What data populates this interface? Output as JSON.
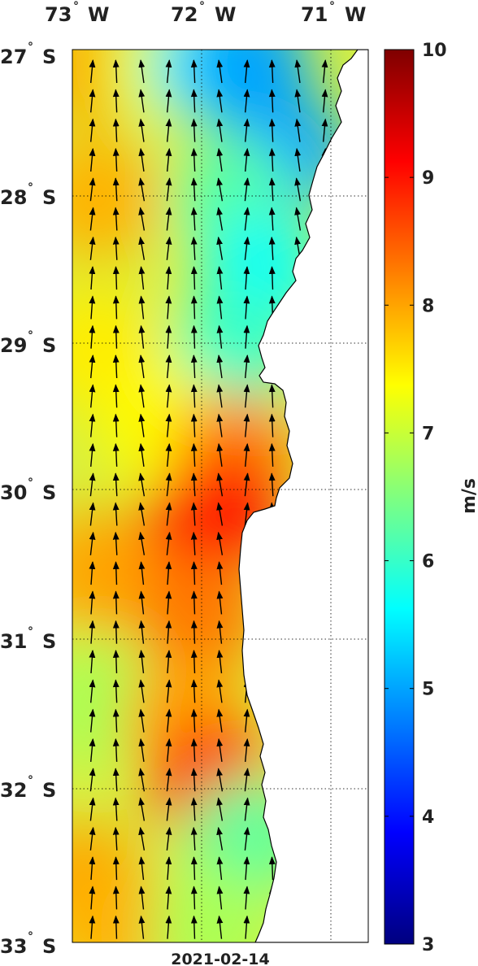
{
  "date_label": "2021-02-14",
  "colorbar": {
    "unit": "m/s",
    "min": 3,
    "max": 10,
    "ticks": [
      "3",
      "4",
      "5",
      "6",
      "7",
      "8",
      "9",
      "10"
    ]
  },
  "axes": {
    "lon_labels": [
      {
        "deg": "73",
        "dir": "W",
        "value": -73
      },
      {
        "deg": "72",
        "dir": "W",
        "value": -72
      },
      {
        "deg": "71",
        "dir": "W",
        "value": -71
      }
    ],
    "lat_labels": [
      {
        "deg": "27",
        "dir": "S",
        "value": -27
      },
      {
        "deg": "28",
        "dir": "S",
        "value": -28
      },
      {
        "deg": "29",
        "dir": "S",
        "value": -29
      },
      {
        "deg": "30",
        "dir": "S",
        "value": -30
      },
      {
        "deg": "31",
        "dir": "S",
        "value": -31
      },
      {
        "deg": "32",
        "dir": "S",
        "value": -32
      },
      {
        "deg": "33",
        "dir": "S",
        "value": -33
      }
    ],
    "lon_range": [
      -73.1,
      -70.75
    ],
    "lat_range": [
      -33,
      -27
    ],
    "grid": true
  },
  "chart_data": {
    "type": "heatmap",
    "variable": "wind speed",
    "units": "m/s",
    "color_range": [
      3,
      10
    ],
    "colormap": "jet",
    "speed_field": [
      {
        "lat": -27.1,
        "lon": -72.9,
        "value": 8.0
      },
      {
        "lat": -27.1,
        "lon": -72.4,
        "value": 7.2
      },
      {
        "lat": -27.1,
        "lon": -72.0,
        "value": 5.5
      },
      {
        "lat": -27.1,
        "lon": -71.7,
        "value": 5.0
      },
      {
        "lat": -27.7,
        "lon": -71.4,
        "value": 5.0
      },
      {
        "lat": -28.0,
        "lon": -72.9,
        "value": 7.9
      },
      {
        "lat": -28.0,
        "lon": -71.8,
        "value": 6.2
      },
      {
        "lat": -28.5,
        "lon": -71.6,
        "value": 5.7
      },
      {
        "lat": -29.0,
        "lon": -72.9,
        "value": 7.5
      },
      {
        "lat": -29.0,
        "lon": -71.8,
        "value": 6.0
      },
      {
        "lat": -29.5,
        "lon": -72.4,
        "value": 7.4
      },
      {
        "lat": -29.7,
        "lon": -71.8,
        "value": 8.2
      },
      {
        "lat": -30.1,
        "lon": -71.9,
        "value": 8.9
      },
      {
        "lat": -30.3,
        "lon": -72.1,
        "value": 9.0
      },
      {
        "lat": -30.5,
        "lon": -72.9,
        "value": 8.0
      },
      {
        "lat": -30.8,
        "lon": -72.1,
        "value": 8.3
      },
      {
        "lat": -31.4,
        "lon": -72.9,
        "value": 6.8
      },
      {
        "lat": -31.5,
        "lon": -72.2,
        "value": 8.0
      },
      {
        "lat": -31.9,
        "lon": -72.0,
        "value": 8.7
      },
      {
        "lat": -32.3,
        "lon": -71.7,
        "value": 6.3
      },
      {
        "lat": -32.6,
        "lon": -73.0,
        "value": 8.0
      },
      {
        "lat": -32.9,
        "lon": -72.8,
        "value": 7.9
      },
      {
        "lat": -32.9,
        "lon": -72.0,
        "value": 6.8
      }
    ],
    "wind_direction": "toward north (southerly wind)"
  }
}
